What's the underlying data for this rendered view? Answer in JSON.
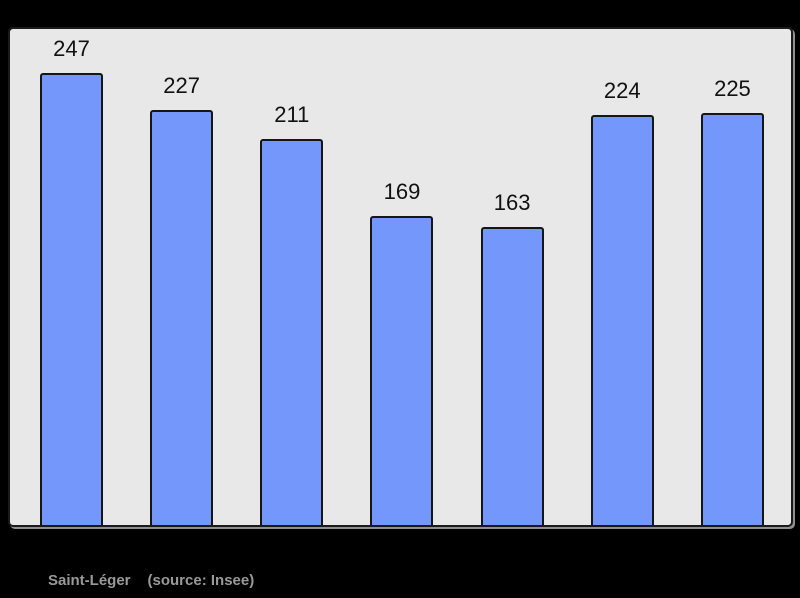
{
  "chart_data": {
    "type": "bar",
    "title": "",
    "xlabel": "",
    "ylabel": "",
    "values": [
      247,
      227,
      211,
      169,
      163,
      224,
      225
    ],
    "bar_value_labels": [
      "247",
      "227",
      "211",
      "169",
      "163",
      "224",
      "225"
    ],
    "ylim": [
      0,
      273
    ],
    "grid": false,
    "legend": null,
    "axis_tick_labels": "none visible",
    "layout_hints": {
      "bar_count": 7,
      "value_labels_position": "above bars",
      "plot_panel": "light gray rounded rectangle with dark border on black background"
    }
  },
  "caption": {
    "name": "Saint-Léger",
    "source": "(source: Insee)"
  },
  "colors": {
    "page_background": "#000000",
    "panel_background": "#e8e8e8",
    "panel_border": "#1a1a1a",
    "panel_shadow": "#8f8f8f",
    "bar_fill": "#7397fa",
    "bar_border": "#161616",
    "value_label_text": "#111111",
    "caption_text": "#999999"
  }
}
